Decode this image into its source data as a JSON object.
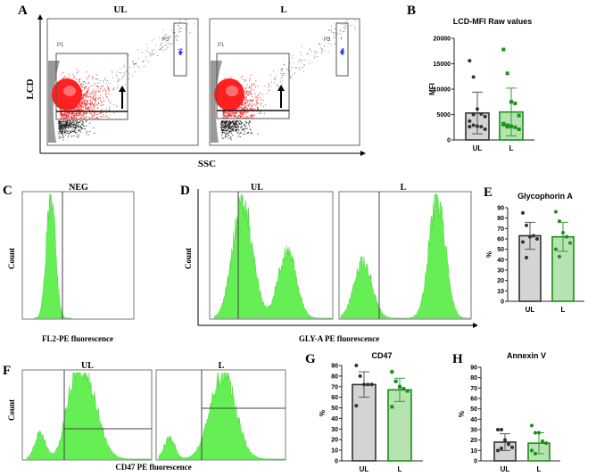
{
  "panels": {
    "A": {
      "label": "A",
      "titles": [
        "UL",
        "L"
      ],
      "ylabel": "LCD",
      "xlabel": "SSC",
      "gates": [
        "P1",
        "P3",
        "P1",
        "P3"
      ]
    },
    "B": {
      "label": "B"
    },
    "C": {
      "label": "C",
      "title": "NEG",
      "ylabel": "Count",
      "xlabel": "FL2-PE fluorescence"
    },
    "D": {
      "label": "D",
      "titles": [
        "UL",
        "L"
      ],
      "ylabel": "Count",
      "xlabel": "GLY-A PE fluorescence"
    },
    "E": {
      "label": "E"
    },
    "F": {
      "label": "F",
      "titles": [
        "UL",
        "L"
      ],
      "ylabel": "Count",
      "xlabel": "CD47 PE fluorescence"
    },
    "G": {
      "label": "G"
    },
    "H": {
      "label": "H"
    }
  },
  "colors": {
    "ul_fill": "#d4d4d4",
    "ul_stroke": "#333333",
    "l_fill": "#b6e3b0",
    "l_stroke": "#1c8c1c",
    "scatter_gate": "#ff2020",
    "scatter_p3": "#2030ff",
    "histogram": "#66ee55"
  },
  "chart_data": [
    {
      "id": "B",
      "type": "bar",
      "title": "LCD-MFI Raw values",
      "ylabel": "MFI",
      "xlabel": "",
      "categories": [
        "UL",
        "L"
      ],
      "ylim": [
        0,
        20000
      ],
      "yticks": [
        "0",
        "5000",
        "10000",
        "15000",
        "20000"
      ],
      "ytick_values": [
        0,
        5000,
        10000,
        15000,
        20000
      ],
      "series": [
        {
          "name": "UL",
          "mean": 5300,
          "sd": 4100,
          "marker": "circle",
          "points": [
            15600,
            12400,
            6100,
            5100,
            4600,
            3700,
            2900,
            2700,
            2600,
            2100,
            2600,
            5000
          ]
        },
        {
          "name": "L",
          "mean": 5500,
          "sd": 4700,
          "marker": "square",
          "points": [
            17800,
            13100,
            7500,
            7200,
            4800,
            3200,
            2900,
            2700,
            2500,
            2100,
            3000,
            2600
          ]
        }
      ]
    },
    {
      "id": "E",
      "type": "bar",
      "title": "Glycophorin A",
      "ylabel": "%",
      "xlabel": "",
      "categories": [
        "UL",
        "L"
      ],
      "ylim": [
        0,
        90
      ],
      "yticks": [
        "0",
        "10",
        "20",
        "30",
        "40",
        "50",
        "60",
        "70",
        "80",
        "90"
      ],
      "ytick_values": [
        0,
        10,
        20,
        30,
        40,
        50,
        60,
        70,
        80,
        90
      ],
      "series": [
        {
          "name": "UL",
          "mean": 63,
          "sd": 13,
          "marker": "circle",
          "points": [
            85,
            73,
            62,
            63,
            60,
            57,
            42
          ]
        },
        {
          "name": "L",
          "mean": 62,
          "sd": 14,
          "marker": "circle",
          "points": [
            86,
            77,
            66,
            62,
            56,
            50,
            43
          ]
        }
      ]
    },
    {
      "id": "G",
      "type": "bar",
      "title": "CD47",
      "ylabel": "%",
      "xlabel": "",
      "categories": [
        "UL",
        "L"
      ],
      "ylim": [
        0,
        90
      ],
      "yticks": [
        "0",
        "10",
        "20",
        "30",
        "40",
        "50",
        "60",
        "70",
        "80",
        "90"
      ],
      "ytick_values": [
        0,
        10,
        20,
        30,
        40,
        50,
        60,
        70,
        80,
        90
      ],
      "series": [
        {
          "name": "UL",
          "mean": 72,
          "sd": 12,
          "marker": "circle",
          "points": [
            90,
            80,
            72,
            72,
            72,
            52
          ]
        },
        {
          "name": "L",
          "mean": 67,
          "sd": 11,
          "marker": "square",
          "points": [
            84,
            75,
            70,
            68,
            66,
            51
          ]
        }
      ]
    },
    {
      "id": "H",
      "type": "bar",
      "title": "Annexin V",
      "ylabel": "%",
      "xlabel": "",
      "categories": [
        "UL",
        "L"
      ],
      "ylim": [
        0,
        90
      ],
      "yticks": [
        "0",
        "10",
        "20",
        "30",
        "40",
        "50",
        "60",
        "70",
        "80",
        "90"
      ],
      "ytick_values": [
        0,
        10,
        20,
        30,
        40,
        50,
        60,
        70,
        80,
        90
      ],
      "series": [
        {
          "name": "UL",
          "mean": 18,
          "sd": 8,
          "marker": "circle",
          "points": [
            30,
            30,
            20,
            16,
            13,
            10,
            12
          ]
        },
        {
          "name": "L",
          "mean": 17,
          "sd": 10,
          "marker": "circle",
          "points": [
            34,
            27,
            27,
            19,
            17,
            10,
            7
          ]
        }
      ]
    }
  ]
}
